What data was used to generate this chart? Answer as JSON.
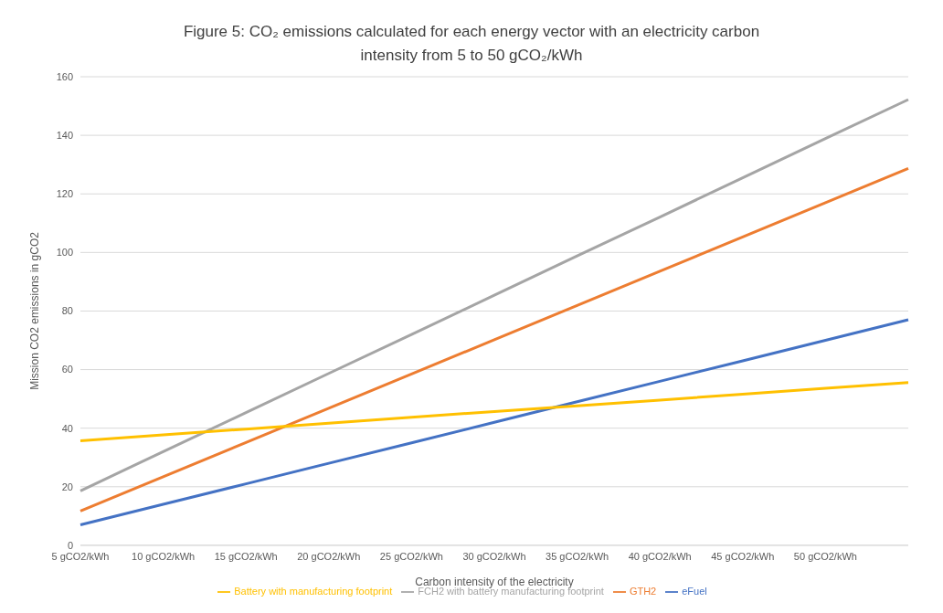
{
  "chart_data": {
    "type": "line",
    "title": "Figure 5: CO₂ emissions calculated for each energy vector with an electricity carbon intensity from 5 to 50 gCO₂/kWh",
    "xlabel": "Carbon intensity of the electricity",
    "ylabel": "Mission CO2 emissions in gCO2",
    "categories": [
      "5 gCO2/kWh",
      "10 gCO2/kWh",
      "15 gCO2/kWh",
      "20 gCO2/kWh",
      "25 gCO2/kWh",
      "30 gCO2/kWh",
      "35 gCO2/kWh",
      "40 gCO2/kWh",
      "45 gCO2/kWh",
      "50 gCO2/kWh",
      null
    ],
    "series": [
      {
        "name": "eFuel",
        "color": "#4472c4",
        "values": [
          7,
          14,
          21,
          28,
          35,
          42,
          49,
          56,
          63,
          70,
          77
        ]
      },
      {
        "name": "GTH2",
        "color": "#ed7d31",
        "values": [
          11.7,
          23.4,
          35.1,
          46.8,
          58.5,
          70.2,
          81.9,
          93.6,
          105.3,
          117,
          128.7
        ]
      },
      {
        "name": "FCH2 with battery manufacturing footprint",
        "color": "#a5a5a5",
        "values": [
          18.6,
          32,
          45.3,
          58.7,
          72,
          85.4,
          98.8,
          112.1,
          125.5,
          138.9,
          152.2
        ]
      },
      {
        "name": "Battery with manufacturing footprint",
        "color": "#ffc000",
        "values": [
          35.7,
          37.7,
          39.7,
          41.7,
          43.7,
          45.7,
          47.6,
          49.6,
          51.6,
          53.6,
          55.6
        ]
      }
    ],
    "ylim": [
      0,
      160
    ],
    "yticks": [
      0,
      20,
      40,
      60,
      80,
      100,
      120,
      140,
      160
    ],
    "grid": "y",
    "legend": "bottom",
    "marker": "none",
    "line_style": "solid"
  }
}
